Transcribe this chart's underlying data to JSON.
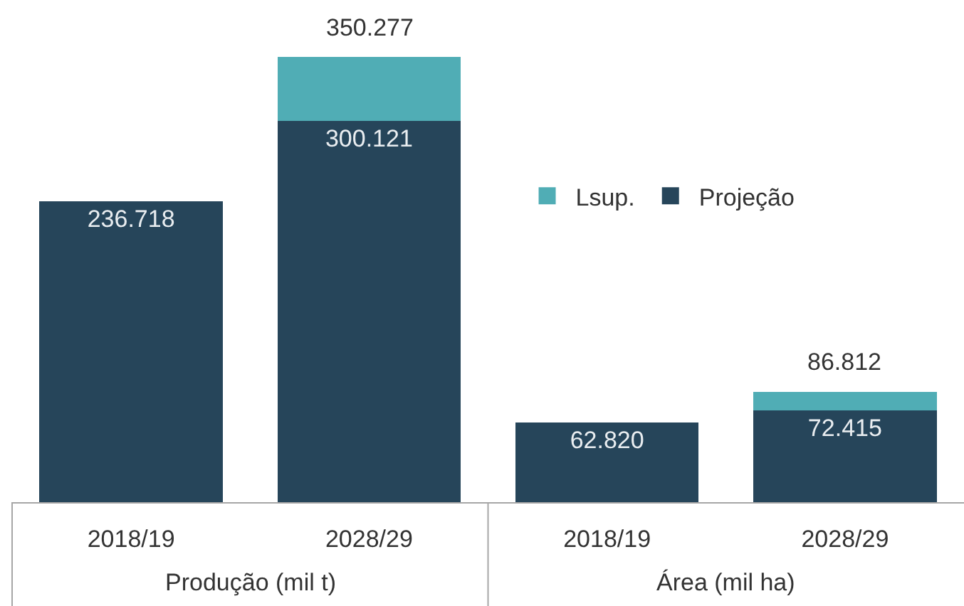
{
  "chart_data": {
    "type": "bar",
    "categories": [
      "2018/19",
      "2028/29",
      "2018/19",
      "2028/29"
    ],
    "stacked": true,
    "series": [
      {
        "name": "Projeção",
        "color": "#26455a",
        "values": [
          236718,
          300121,
          62820,
          72415
        ],
        "value_labels": [
          "236.718",
          "300.121",
          "62.820",
          "72.415"
        ]
      },
      {
        "name": "Lsup.",
        "color": "#50adb5",
        "values": [
          null,
          50156,
          null,
          14397
        ]
      }
    ],
    "totals": [
      null,
      "350.277",
      null,
      "86.812"
    ],
    "annotations": [
      "Produção (mil t)",
      "Área (mil ha)"
    ],
    "legend": "top right",
    "tick_labels": "x"
  }
}
